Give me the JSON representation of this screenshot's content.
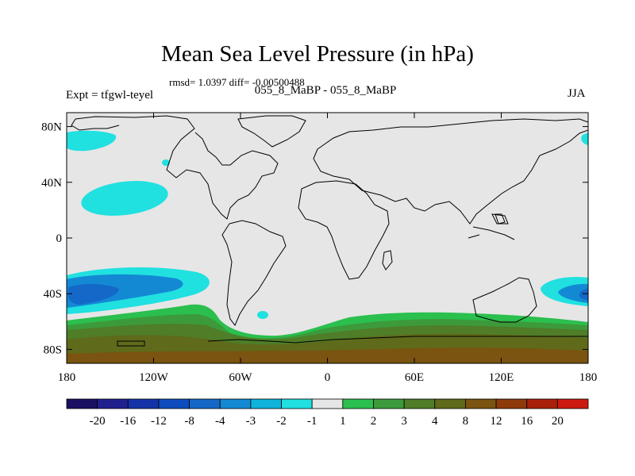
{
  "chart_data": {
    "type": "heatmap",
    "title": "Mean Sea Level Pressure (in hPa)",
    "stats": "rmsd= 1.0397  diff= -0.00500488",
    "subtitle": "055_8_MaBP - 055_8_MaBP",
    "experiment": "Expt = tfgwl-teyel",
    "season": "JJA",
    "xlim": [
      -180,
      180
    ],
    "ylim": [
      -90,
      90
    ],
    "x_ticks": [
      {
        "value": -180,
        "label": "180"
      },
      {
        "value": -120,
        "label": "120W"
      },
      {
        "value": -60,
        "label": "60W"
      },
      {
        "value": 0,
        "label": "0"
      },
      {
        "value": 60,
        "label": "60E"
      },
      {
        "value": 120,
        "label": "120E"
      },
      {
        "value": 180,
        "label": "180"
      }
    ],
    "y_ticks": [
      {
        "value": 80,
        "label": "80N"
      },
      {
        "value": 40,
        "label": "40N"
      },
      {
        "value": 0,
        "label": "0"
      },
      {
        "value": -40,
        "label": "40S"
      },
      {
        "value": -80,
        "label": "80S"
      }
    ],
    "colorbar": {
      "levels": [
        "-20",
        "-16",
        "-12",
        "-8",
        "-4",
        "-3",
        "-2",
        "-1",
        "1",
        "2",
        "3",
        "4",
        "8",
        "12",
        "16",
        "20"
      ],
      "colors": [
        "#1a1063",
        "#21208f",
        "#1533a8",
        "#0d4cbe",
        "#1468c8",
        "#1389d4",
        "#0fb3dc",
        "#20e0e0",
        "#e6e6e6",
        "#2bbf4e",
        "#3c9a3a",
        "#4f7d28",
        "#5f6a1a",
        "#7a5410",
        "#8e3a0a",
        "#a8200a",
        "#cc1a10"
      ]
    },
    "regions": [
      {
        "name": "north-pacific-high-anomaly",
        "level": "-2 to -1",
        "center": [
          -148,
          34
        ],
        "extent": [
          -176,
          -118,
          24,
          44
        ]
      },
      {
        "name": "arctic-pacific-anomaly",
        "level": "-2 to -1",
        "center": [
          -170,
          67
        ],
        "extent": [
          -180,
          -155,
          62,
          72
        ]
      },
      {
        "name": "arctic-east-anomaly",
        "level": "-2 to -1",
        "center": [
          178,
          67
        ],
        "extent": [
          176,
          180,
          64,
          70
        ]
      },
      {
        "name": "south-pacific-low",
        "level": "-4 to -3",
        "center": [
          -158,
          -41
        ],
        "extent": [
          -180,
          -112,
          -52,
          -28
        ]
      },
      {
        "name": "south-indian-pacific-low",
        "level": "-4 to -3",
        "center": [
          170,
          -41
        ],
        "extent": [
          148,
          180,
          -52,
          -32
        ]
      },
      {
        "name": "southern-ocean-positive-band",
        "level": "1 to 4",
        "extent": [
          -180,
          180,
          -90,
          -60
        ]
      },
      {
        "name": "antarctic-positive-core",
        "level": "4 to 8",
        "extent": [
          -180,
          180,
          -90,
          -72
        ]
      }
    ]
  }
}
